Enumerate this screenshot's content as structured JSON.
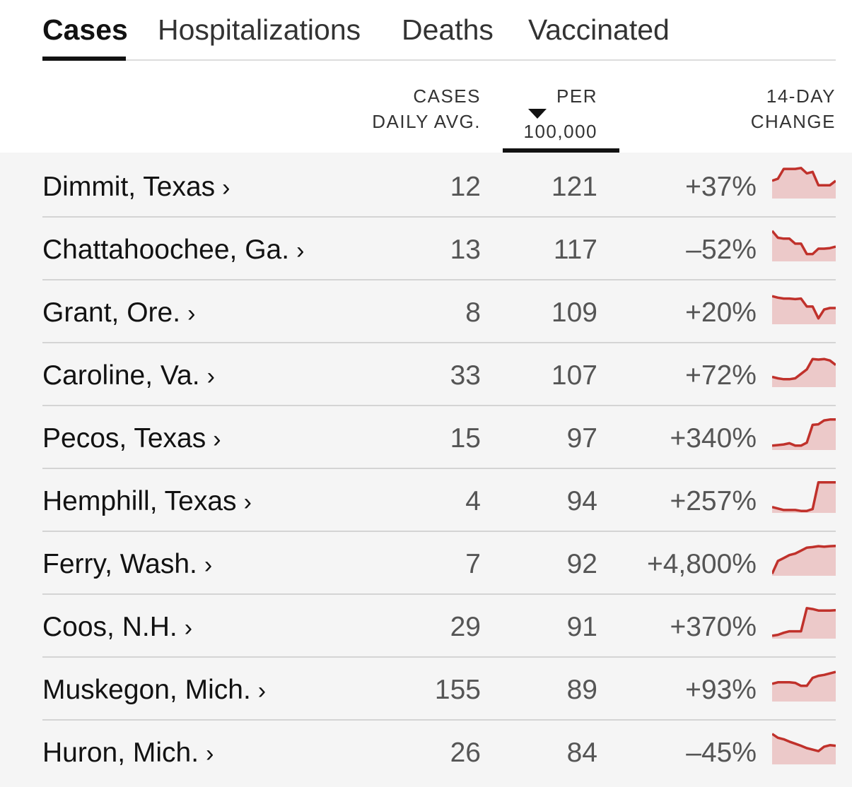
{
  "tabs": [
    {
      "label": "Cases",
      "active": true
    },
    {
      "label": "Hospitalizations",
      "active": false
    },
    {
      "label": "Deaths",
      "active": false
    },
    {
      "label": "Vaccinated",
      "active": false
    }
  ],
  "columns": {
    "cases_line1": "CASES",
    "cases_line2": "DAILY AVG.",
    "per_line1": "PER",
    "per_line2": "100,000",
    "change_line1": "14-DAY",
    "change_line2": "CHANGE",
    "sorted_by": "per_100000",
    "sort_direction": "descending"
  },
  "colors": {
    "spark_line": "#c0312b",
    "spark_fill": "#ecc9c9",
    "row_bg": "#f5f5f5",
    "divider": "#d4d4d4"
  },
  "rows": [
    {
      "name": "Dimmit, Texas",
      "chevron": "›",
      "cases_avg": "12",
      "per_100k": "121",
      "change": "+37%",
      "trend": [
        0.55,
        0.62,
        0.95,
        0.95,
        0.95,
        0.98,
        0.8,
        0.85,
        0.4,
        0.4,
        0.4,
        0.55
      ]
    },
    {
      "name": "Chattahoochee, Ga.",
      "chevron": "›",
      "cases_avg": "13",
      "per_100k": "117",
      "change": "–52%",
      "trend": [
        0.98,
        0.75,
        0.72,
        0.72,
        0.55,
        0.55,
        0.2,
        0.2,
        0.38,
        0.38,
        0.4,
        0.45
      ]
    },
    {
      "name": "Grant, Ore.",
      "chevron": "›",
      "cases_avg": "8",
      "per_100k": "109",
      "change": "+20%",
      "trend": [
        0.9,
        0.85,
        0.82,
        0.82,
        0.8,
        0.82,
        0.55,
        0.55,
        0.15,
        0.45,
        0.5,
        0.5
      ]
    },
    {
      "name": "Caroline, Va.",
      "chevron": "›",
      "cases_avg": "33",
      "per_100k": "107",
      "change": "+72%",
      "trend": [
        0.3,
        0.25,
        0.22,
        0.22,
        0.25,
        0.4,
        0.55,
        0.9,
        0.88,
        0.9,
        0.85,
        0.7
      ]
    },
    {
      "name": "Pecos, Texas",
      "chevron": "›",
      "cases_avg": "15",
      "per_100k": "97",
      "change": "+340%",
      "trend": [
        0.1,
        0.12,
        0.14,
        0.18,
        0.1,
        0.1,
        0.2,
        0.8,
        0.82,
        0.95,
        0.98,
        0.98
      ]
    },
    {
      "name": "Hemphill, Texas",
      "chevron": "›",
      "cases_avg": "4",
      "per_100k": "94",
      "change": "+257%",
      "trend": [
        0.15,
        0.1,
        0.05,
        0.05,
        0.05,
        0.02,
        0.02,
        0.08,
        0.98,
        0.98,
        0.98,
        0.98
      ]
    },
    {
      "name": "Ferry, Wash.",
      "chevron": "›",
      "cases_avg": "7",
      "per_100k": "92",
      "change": "+4,800%",
      "trend": [
        0.02,
        0.45,
        0.55,
        0.65,
        0.7,
        0.8,
        0.9,
        0.92,
        0.95,
        0.93,
        0.95,
        0.96
      ]
    },
    {
      "name": "Coos, N.H.",
      "chevron": "›",
      "cases_avg": "29",
      "per_100k": "91",
      "change": "+370%",
      "trend": [
        0.05,
        0.08,
        0.15,
        0.2,
        0.2,
        0.2,
        0.98,
        0.95,
        0.9,
        0.9,
        0.9,
        0.91
      ]
    },
    {
      "name": "Muskegon, Mich.",
      "chevron": "›",
      "cases_avg": "155",
      "per_100k": "89",
      "change": "+93%",
      "trend": [
        0.55,
        0.6,
        0.6,
        0.6,
        0.58,
        0.48,
        0.48,
        0.75,
        0.82,
        0.85,
        0.9,
        0.95
      ]
    },
    {
      "name": "Huron, Mich.",
      "chevron": "›",
      "cases_avg": "26",
      "per_100k": "84",
      "change": "–45%",
      "trend": [
        0.98,
        0.85,
        0.8,
        0.72,
        0.65,
        0.58,
        0.5,
        0.45,
        0.4,
        0.55,
        0.6,
        0.58
      ]
    }
  ]
}
